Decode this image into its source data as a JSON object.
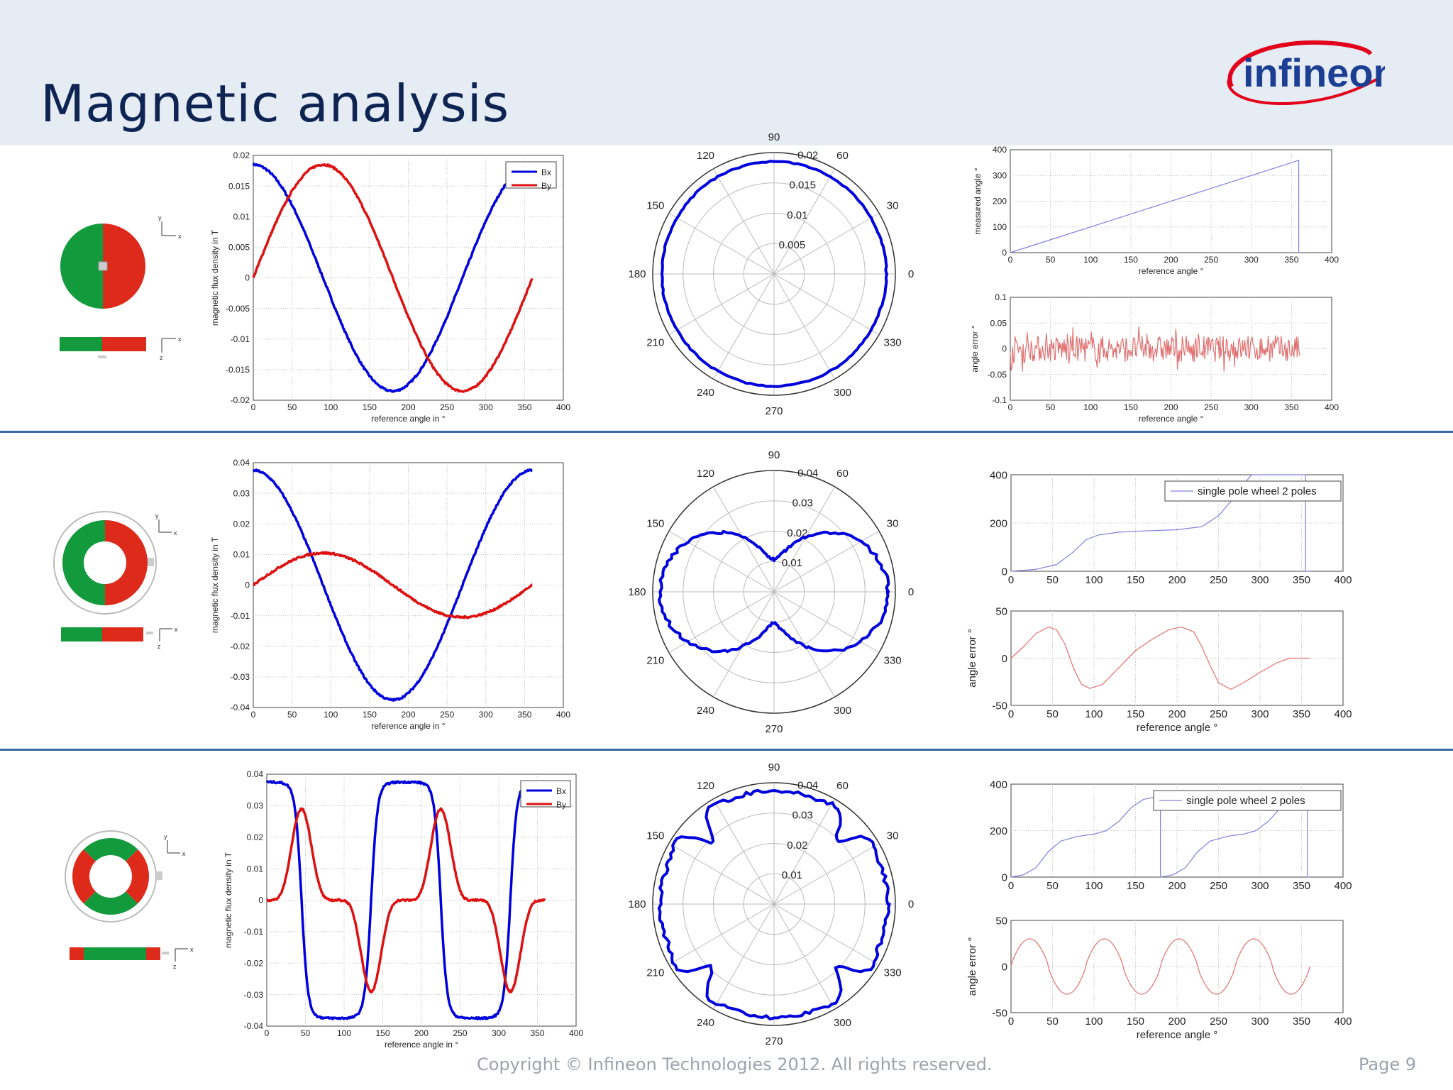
{
  "page": {
    "title": "Magnetic analysis",
    "logo_text": "infineon",
    "copyright": "Copyright © Infineon Technologies 2012. All rights reserved.",
    "page_number": "Page 9",
    "colors": {
      "header_bg": "#e6ecf4",
      "title": "#0e2452",
      "bx": "#0000dd",
      "by": "#dd1111",
      "measured": "#8080e0",
      "error": "#e07070",
      "magnet_green": "#139a3c",
      "magnet_red": "#dd2a1b",
      "separator": "#3a6aa3"
    }
  },
  "chart_data": [
    {
      "id": "r1_flux",
      "type": "line",
      "xlabel": "reference angle in °",
      "ylabel": "magnetic flux density in T",
      "xlim": [
        0,
        400
      ],
      "ylim": [
        -0.02,
        0.02
      ],
      "xticks": [
        "0",
        "50",
        "100",
        "150",
        "200",
        "250",
        "300",
        "350",
        "400"
      ],
      "yticks": [
        "-0.02",
        "-0.015",
        "-0.01",
        "-0.005",
        "0",
        "0.005",
        "0.01",
        "0.015",
        "0.02"
      ],
      "grid": true,
      "legend": {
        "placement": "top-right",
        "entries": [
          "Bx",
          "By"
        ]
      },
      "series": [
        {
          "name": "Bx",
          "color": "#0000dd",
          "formula": "0.0185*cos(x)",
          "x_range": [
            0,
            330
          ]
        },
        {
          "name": "By",
          "color": "#dd1111",
          "formula": "0.0185*sin(x)",
          "x_range": [
            0,
            360
          ]
        }
      ]
    },
    {
      "id": "r1_polar",
      "type": "polar",
      "angle_labels": [
        "0",
        "30",
        "60",
        "90",
        "120",
        "150",
        "180",
        "210",
        "240",
        "270",
        "300",
        "330"
      ],
      "radius_labels": [
        "0.005",
        "0.01",
        "0.015",
        "0.02"
      ],
      "rmax": 0.02,
      "series": [
        {
          "color": "#0000dd",
          "formula": "0.0185",
          "x_range": [
            0,
            360
          ]
        }
      ]
    },
    {
      "id": "r1_measured",
      "type": "line",
      "xlabel": "reference angle °",
      "ylabel": "measured angle °",
      "xlim": [
        0,
        400
      ],
      "ylim": [
        0,
        400
      ],
      "xticks": [
        "0",
        "50",
        "100",
        "150",
        "200",
        "250",
        "300",
        "350",
        "400"
      ],
      "yticks": [
        "0",
        "100",
        "200",
        "300",
        "400"
      ],
      "grid": true,
      "series": [
        {
          "color": "#8080e0",
          "points": [
            [
              0,
              0
            ],
            [
              359,
              359
            ],
            [
              359,
              0
            ],
            [
              360,
              0
            ]
          ]
        }
      ]
    },
    {
      "id": "r1_error",
      "type": "line",
      "xlabel": "reference angle °",
      "ylabel": "angle error °",
      "xlim": [
        0,
        400
      ],
      "ylim": [
        -0.1,
        0.1
      ],
      "xticks": [
        "0",
        "50",
        "100",
        "150",
        "200",
        "250",
        "300",
        "350",
        "400"
      ],
      "yticks": [
        "-0.1",
        "-0.05",
        "0",
        "0.05",
        "0.1"
      ],
      "grid": true,
      "series": [
        {
          "color": "#e07070",
          "formula": "noise",
          "amplitude": 0.025,
          "x_range": [
            0,
            360
          ]
        }
      ]
    },
    {
      "id": "r2_flux",
      "type": "line",
      "xlabel": "reference angle in °",
      "ylabel": "magnetic flux density in T",
      "xlim": [
        0,
        400
      ],
      "ylim": [
        -0.04,
        0.04
      ],
      "xticks": [
        "0",
        "50",
        "100",
        "150",
        "200",
        "250",
        "300",
        "350",
        "400"
      ],
      "yticks": [
        "-0.04",
        "-0.03",
        "-0.02",
        "-0.01",
        "0",
        "0.01",
        "0.02",
        "0.03",
        "0.04"
      ],
      "grid": true,
      "series": [
        {
          "name": "Bx",
          "color": "#0000dd",
          "formula": "0.0375*cos(x)",
          "x_range": [
            0,
            360
          ]
        },
        {
          "name": "By",
          "color": "#dd1111",
          "formula": "0.0105*sin(x)",
          "x_range": [
            0,
            360
          ]
        }
      ]
    },
    {
      "id": "r2_polar",
      "type": "polar",
      "angle_labels": [
        "0",
        "30",
        "60",
        "90",
        "120",
        "150",
        "180",
        "210",
        "240",
        "270",
        "300",
        "330"
      ],
      "radius_labels": [
        "0.01",
        "0.02",
        "0.03",
        "0.04"
      ],
      "rmax": 0.04,
      "series": [
        {
          "color": "#0000dd",
          "formula": "sqrt((0.0375cos x)^2+(0.0105sin x)^2)",
          "x_range": [
            0,
            360
          ]
        }
      ]
    },
    {
      "id": "r2_measured",
      "type": "line",
      "xlim": [
        0,
        400
      ],
      "ylim": [
        0,
        400
      ],
      "xticks": [
        "0",
        "50",
        "100",
        "150",
        "200",
        "250",
        "300",
        "350",
        "400"
      ],
      "yticks": [
        "0",
        "200",
        "400"
      ],
      "grid": true,
      "legend": {
        "placement": "top-right",
        "entries": [
          "single pole wheel 2 poles"
        ]
      },
      "series": [
        {
          "name": "single pole wheel 2 poles",
          "color": "#8080e0",
          "points": [
            [
              0,
              0
            ],
            [
              30,
              8
            ],
            [
              55,
              28
            ],
            [
              75,
              80
            ],
            [
              90,
              130
            ],
            [
              105,
              150
            ],
            [
              130,
              162
            ],
            [
              160,
              167
            ],
            [
              200,
              172
            ],
            [
              230,
              185
            ],
            [
              250,
              230
            ],
            [
              265,
              290
            ],
            [
              280,
              360
            ],
            [
              290,
              400
            ],
            [
              355,
              400
            ],
            [
              355,
              0
            ],
            [
              360,
              0
            ]
          ]
        }
      ]
    },
    {
      "id": "r2_error",
      "type": "line",
      "xlabel": "reference angle °",
      "ylabel": "angle error °",
      "xlim": [
        0,
        400
      ],
      "ylim": [
        -50,
        50
      ],
      "xticks": [
        "0",
        "50",
        "100",
        "150",
        "200",
        "250",
        "300",
        "350",
        "400"
      ],
      "yticks": [
        "-50",
        "0",
        "50"
      ],
      "grid": true,
      "series": [
        {
          "color": "#e07070",
          "points": [
            [
              0,
              0
            ],
            [
              15,
              12
            ],
            [
              30,
              26
            ],
            [
              45,
              33
            ],
            [
              55,
              30
            ],
            [
              65,
              15
            ],
            [
              75,
              -10
            ],
            [
              85,
              -28
            ],
            [
              95,
              -32
            ],
            [
              110,
              -28
            ],
            [
              130,
              -10
            ],
            [
              150,
              8
            ],
            [
              170,
              20
            ],
            [
              190,
              30
            ],
            [
              205,
              33
            ],
            [
              220,
              28
            ],
            [
              230,
              12
            ],
            [
              240,
              -8
            ],
            [
              250,
              -26
            ],
            [
              265,
              -33
            ],
            [
              280,
              -26
            ],
            [
              300,
              -15
            ],
            [
              320,
              -5
            ],
            [
              336,
              0
            ],
            [
              360,
              0
            ]
          ]
        }
      ]
    },
    {
      "id": "r3_flux",
      "type": "line",
      "xlabel": "reference angle in °",
      "ylabel": "magnetic flux density in T",
      "xlim": [
        0,
        400
      ],
      "ylim": [
        -0.04,
        0.04
      ],
      "xticks": [
        "0",
        "50",
        "100",
        "150",
        "200",
        "250",
        "300",
        "350",
        "400"
      ],
      "yticks": [
        "-0.04",
        "-0.03",
        "-0.02",
        "-0.01",
        "0",
        "0.01",
        "0.02",
        "0.03",
        "0.04"
      ],
      "grid": true,
      "legend": {
        "placement": "top-right",
        "entries": [
          "Bx",
          "By"
        ]
      },
      "series": [
        {
          "name": "Bx",
          "color": "#0000dd",
          "formula": "0.0375*tanh(3.5cos(2x))/tanh(3.5)",
          "x_range": [
            0,
            330
          ]
        },
        {
          "name": "By",
          "color": "#dd1111",
          "formula": "peaks +0.029 at 45,225 ; -0.029 at 135,315",
          "x_range": [
            0,
            360
          ]
        }
      ]
    },
    {
      "id": "r3_polar",
      "type": "polar",
      "angle_labels": [
        "0",
        "30",
        "60",
        "90",
        "120",
        "150",
        "180",
        "210",
        "240",
        "270",
        "300",
        "330"
      ],
      "radius_labels": [
        "0.01",
        "0.02",
        "0.03",
        "0.04"
      ],
      "rmax": 0.04,
      "series": [
        {
          "color": "#0000dd",
          "formula": "|B| rounded square",
          "x_range": [
            0,
            360
          ]
        }
      ]
    },
    {
      "id": "r3_measured",
      "type": "line",
      "xlim": [
        0,
        400
      ],
      "ylim": [
        0,
        400
      ],
      "xticks": [
        "0",
        "50",
        "100",
        "150",
        "200",
        "250",
        "300",
        "350",
        "400"
      ],
      "yticks": [
        "0",
        "200",
        "400"
      ],
      "grid": true,
      "legend": {
        "placement": "top-right",
        "entries": [
          "single pole wheel 2 poles"
        ]
      },
      "series": [
        {
          "name": "single pole wheel 2 poles",
          "color": "#8080e0",
          "points": [
            [
              0,
              0
            ],
            [
              15,
              10
            ],
            [
              30,
              40
            ],
            [
              45,
              110
            ],
            [
              60,
              155
            ],
            [
              80,
              175
            ],
            [
              100,
              185
            ],
            [
              115,
              200
            ],
            [
              130,
              240
            ],
            [
              145,
              300
            ],
            [
              160,
              335
            ],
            [
              175,
              345
            ],
            [
              180,
              345
            ],
            [
              180,
              0
            ],
            [
              195,
              10
            ],
            [
              210,
              40
            ],
            [
              225,
              110
            ],
            [
              240,
              155
            ],
            [
              260,
              175
            ],
            [
              280,
              185
            ],
            [
              295,
              200
            ],
            [
              310,
              240
            ],
            [
              325,
              300
            ],
            [
              340,
              335
            ],
            [
              355,
              345
            ],
            [
              357,
              345
            ],
            [
              357,
              0
            ],
            [
              360,
              0
            ]
          ]
        }
      ]
    },
    {
      "id": "r3_error",
      "type": "line",
      "xlabel": "reference angle °",
      "ylabel": "angle error °",
      "xlim": [
        0,
        400
      ],
      "ylim": [
        -50,
        50
      ],
      "xticks": [
        "0",
        "50",
        "100",
        "150",
        "200",
        "250",
        "300",
        "350",
        "400"
      ],
      "yticks": [
        "-50",
        "0",
        "50"
      ],
      "grid": true,
      "series": [
        {
          "color": "#e07070",
          "formula": "30*sin(4x) sharp",
          "x_range": [
            0,
            360
          ]
        }
      ]
    }
  ]
}
